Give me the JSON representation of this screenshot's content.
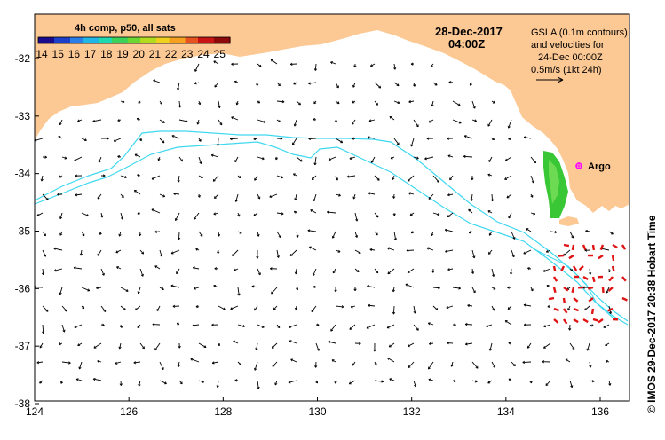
{
  "map": {
    "date": "28-Dec-2017",
    "time": "04:00Z",
    "legend_title": "4h comp, p50, all sats",
    "sst_ticks": [
      "14",
      "15",
      "16",
      "17",
      "18",
      "19",
      "20",
      "21",
      "22",
      "23",
      "24",
      "25"
    ],
    "sst_colors": [
      "#1a0a8c",
      "#1e40c8",
      "#2a7ee8",
      "#22b6e6",
      "#1fd9b0",
      "#3cd25a",
      "#6cd632",
      "#b4dc1e",
      "#f0d21e",
      "#f5a01e",
      "#e8521e",
      "#c81414",
      "#8c0a0a"
    ],
    "info_lines": [
      "GSLA (0.1m contours)",
      "and velocities for",
      "24-Dec 00:00Z",
      "0.5m/s (1kt 24h)"
    ],
    "argo_label": "Argo",
    "credit": "© IMOS 29-Dec-2017 20:38 Hobart Time",
    "colors": {
      "land": "#fcc894",
      "contour": "#3fd8f0",
      "argo": "#ff00ff",
      "arrow": "#000000",
      "sst_green": "#2fc42a",
      "sst_red": "#e01414"
    },
    "x_axis": {
      "ticks": [
        "124",
        "126",
        "128",
        "130",
        "132",
        "134",
        "136"
      ],
      "values": [
        124,
        126,
        128,
        130,
        132,
        134,
        136
      ]
    },
    "y_axis": {
      "ticks": [
        "-32",
        "-33",
        "-34",
        "-35",
        "-36",
        "-37",
        "-38"
      ],
      "values": [
        -32,
        -33,
        -34,
        -35,
        -36,
        -37,
        -38
      ]
    }
  }
}
